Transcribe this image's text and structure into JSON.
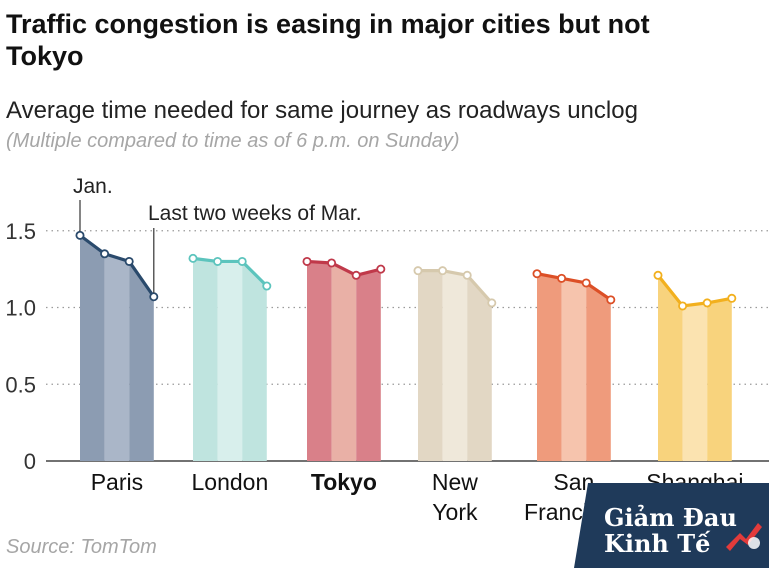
{
  "header": {
    "title": "Traffic congestion is easing in major cities but not Tokyo",
    "subtitle": "Average time needed for same journey as roadways unclog",
    "note": "(Multiple compared to time as of 6 p.m. on Sunday)"
  },
  "source": "Source: TomTom",
  "logo": {
    "line1": "Giảm Đau",
    "line2": "Kinh Tế"
  },
  "chart_data": {
    "type": "line",
    "title": "Traffic congestion is easing in major cities but not Tokyo",
    "subtitle": "Average time needed for same journey as roadways unclog",
    "ylabel": "",
    "ylim": [
      0,
      1.6
    ],
    "yticks": [
      0,
      0.5,
      1.0,
      1.5
    ],
    "ytick_labels": [
      "0",
      "0.5",
      "1.0",
      "1.5"
    ],
    "grid": true,
    "annotations": [
      {
        "text": "Jan.",
        "target": "Paris point 1"
      },
      {
        "text": "Last two weeks of Mar.",
        "target": "Paris point 4"
      }
    ],
    "cities": [
      {
        "name": "Paris",
        "label_lines": [
          "Paris"
        ],
        "bold": false,
        "values": [
          1.47,
          1.35,
          1.3,
          1.07
        ],
        "line_color": "#2a4a6c",
        "fill_dark": "#8c9cb2",
        "fill_light": "#aab6c8"
      },
      {
        "name": "London",
        "label_lines": [
          "London"
        ],
        "bold": false,
        "values": [
          1.32,
          1.3,
          1.3,
          1.14
        ],
        "line_color": "#5cc4bd",
        "fill_dark": "#bfe4df",
        "fill_light": "#d8efec"
      },
      {
        "name": "Tokyo",
        "label_lines": [
          "Tokyo"
        ],
        "bold": true,
        "values": [
          1.3,
          1.29,
          1.21,
          1.25
        ],
        "line_color": "#c0394a",
        "fill_dark": "#d98089",
        "fill_light": "#e9b0a6"
      },
      {
        "name": "New York",
        "label_lines": [
          "New",
          "York"
        ],
        "bold": false,
        "values": [
          1.24,
          1.24,
          1.21,
          1.03
        ],
        "line_color": "#d6c9ad",
        "fill_dark": "#e2d7c4",
        "fill_light": "#efe8da"
      },
      {
        "name": "San Francisco",
        "label_lines": [
          "San",
          "Francisco"
        ],
        "bold": false,
        "values": [
          1.22,
          1.19,
          1.16,
          1.05
        ],
        "line_color": "#dc4f26",
        "fill_dark": "#ef9b7c",
        "fill_light": "#f6c4ad"
      },
      {
        "name": "Shanghai",
        "label_lines": [
          "Shanghai"
        ],
        "bold": false,
        "values": [
          1.21,
          1.01,
          1.03,
          1.06
        ],
        "line_color": "#f2b01e",
        "fill_dark": "#f8d37d",
        "fill_light": "#fbe3b0"
      }
    ]
  }
}
